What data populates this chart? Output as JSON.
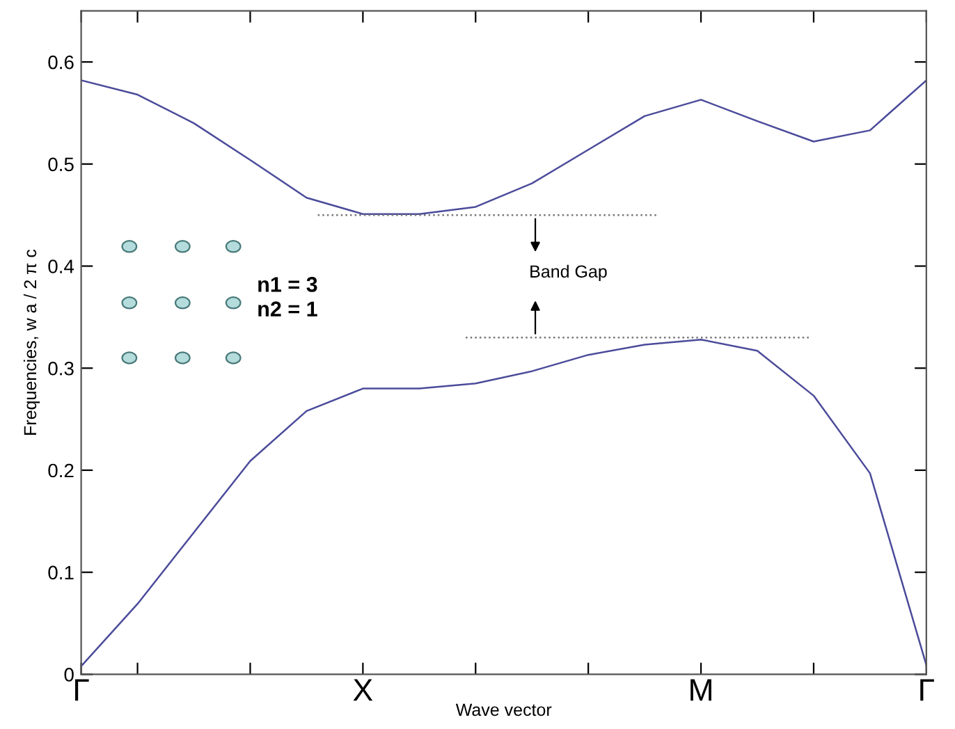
{
  "chart_data": {
    "type": "line",
    "xlabel": "Wave vector",
    "ylabel": "Frequencies, w a / 2 π c",
    "categories": [
      "Γ",
      null,
      null,
      null,
      null,
      "X",
      null,
      null,
      null,
      null,
      null,
      "M",
      null,
      null,
      null,
      "Γ"
    ],
    "series": [
      {
        "color": "#4b4b9b",
        "values": [
          0.582,
          0.568,
          0.54,
          0.504,
          0.467,
          0.451,
          0.451,
          0.458,
          0.481,
          0.514,
          0.547,
          0.563,
          0.542,
          0.522,
          0.533,
          0.582
        ]
      },
      {
        "color": "#4b4b9b",
        "values": [
          0.008,
          0.069,
          0.139,
          0.209,
          0.258,
          0.28,
          0.28,
          0.285,
          0.297,
          0.313,
          0.323,
          0.328,
          0.317,
          0.273,
          0.197,
          0.009
        ]
      }
    ],
    "ylim": [
      0,
      0.65
    ],
    "yticks": [
      0,
      0.1,
      0.2,
      0.3,
      0.4,
      0.5,
      0.6
    ],
    "ref_lines": [
      {
        "axis": "y",
        "value": 0.45,
        "color": "#777777",
        "line_style": "dotted"
      },
      {
        "axis": "y",
        "value": 0.33,
        "color": "#777777",
        "line_style": "dotted"
      }
    ],
    "annotations": [
      "Band Gap",
      "n1 = 3",
      "n2 = 1"
    ],
    "grid": false,
    "marker": "none",
    "line_style": "solid"
  }
}
